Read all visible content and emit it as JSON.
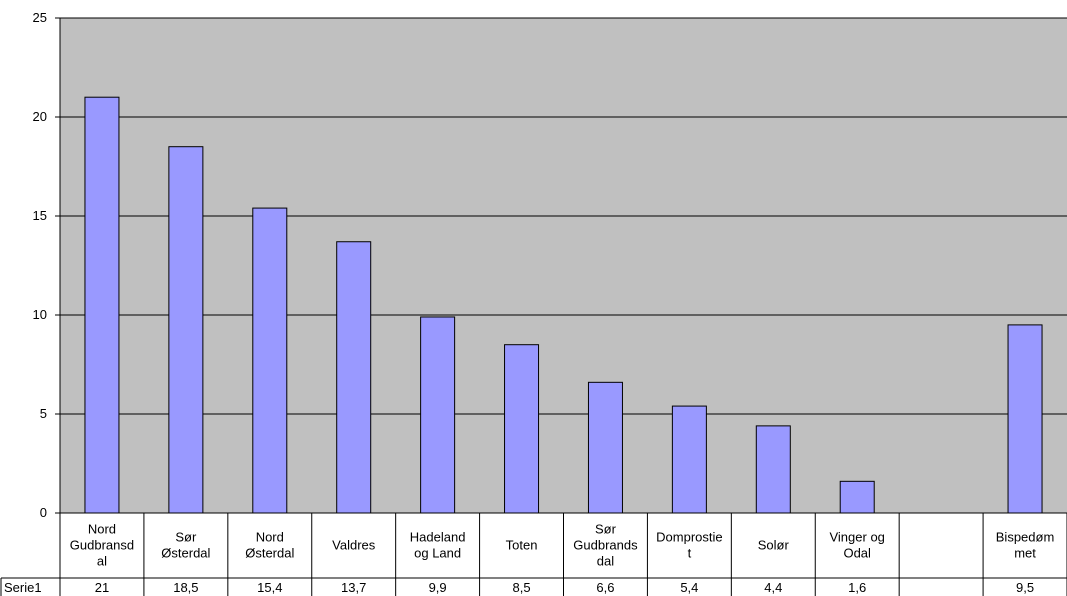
{
  "chart_data": {
    "type": "bar",
    "categories": [
      "Nord Gudbransd al",
      "Sør Østerdal",
      "Nord Østerdal",
      "Valdres",
      "Hadeland og Land",
      "Toten",
      "Sør Gudbrands dal",
      "Domprostie t",
      "Solør",
      "Vinger og Odal",
      "",
      "Bispedøm met"
    ],
    "category_lines": [
      [
        "Nord",
        "Gudbransd",
        "al"
      ],
      [
        "Sør",
        "Østerdal"
      ],
      [
        "Nord",
        "Østerdal"
      ],
      [
        "Valdres"
      ],
      [
        "Hadeland",
        "og Land"
      ],
      [
        "Toten"
      ],
      [
        "Sør",
        "Gudbrands",
        "dal"
      ],
      [
        "Domprostie",
        "t"
      ],
      [
        "Solør"
      ],
      [
        "Vinger og",
        "Odal"
      ],
      [],
      [
        "Bispedøm",
        "met"
      ]
    ],
    "series": [
      {
        "name": "Serie1",
        "values": [
          21,
          18.5,
          15.4,
          13.7,
          9.9,
          8.5,
          6.6,
          5.4,
          4.4,
          1.6,
          null,
          9.5
        ],
        "labels": [
          "21",
          "18,5",
          "15,4",
          "13,7",
          "9,9",
          "8,5",
          "6,6",
          "5,4",
          "4,4",
          "1,6",
          "",
          "9,5"
        ]
      }
    ],
    "ylim": [
      0,
      25
    ],
    "yticks": [
      0,
      5,
      10,
      15,
      20,
      25
    ],
    "grid": true,
    "data_table": true,
    "colors": {
      "bar_fill": "#9999FF",
      "plot_background": "#C0C0C0",
      "grid": "#000000"
    }
  }
}
